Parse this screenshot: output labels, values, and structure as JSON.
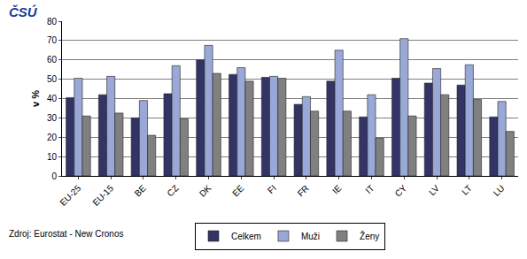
{
  "chart_data": {
    "type": "bar",
    "annotations": [
      "ČSÚ",
      "Zdroj: Eurostat - New Cronos"
    ],
    "y_label": "v %",
    "categories": [
      "EU-25",
      "EU-15",
      "BE",
      "CZ",
      "DK",
      "EE",
      "FI",
      "FR",
      "IE",
      "IT",
      "CY",
      "LV",
      "LT",
      "LU"
    ],
    "series": [
      {
        "name": "Celkem",
        "color": "#333366",
        "values": [
          40.5,
          42,
          30,
          42.5,
          60,
          52.5,
          51,
          37,
          49,
          30.5,
          50.5,
          48,
          47,
          30.5
        ]
      },
      {
        "name": "Muži",
        "color": "#99a8d6",
        "values": [
          50.5,
          51.5,
          39,
          57,
          67.5,
          56,
          51.5,
          41,
          65,
          42,
          71,
          55.5,
          57.5,
          38.5
        ]
      },
      {
        "name": "Ženy",
        "color": "#808080",
        "values": [
          31,
          32.5,
          21,
          29.5,
          53,
          49,
          50.5,
          33.5,
          33.5,
          19.5,
          31,
          42,
          39.5,
          23
        ]
      }
    ],
    "ylim": [
      0,
      80
    ],
    "yticks": [
      0,
      10,
      20,
      30,
      40,
      50,
      60,
      70,
      80
    ],
    "grid": true,
    "legend": "bottom"
  }
}
